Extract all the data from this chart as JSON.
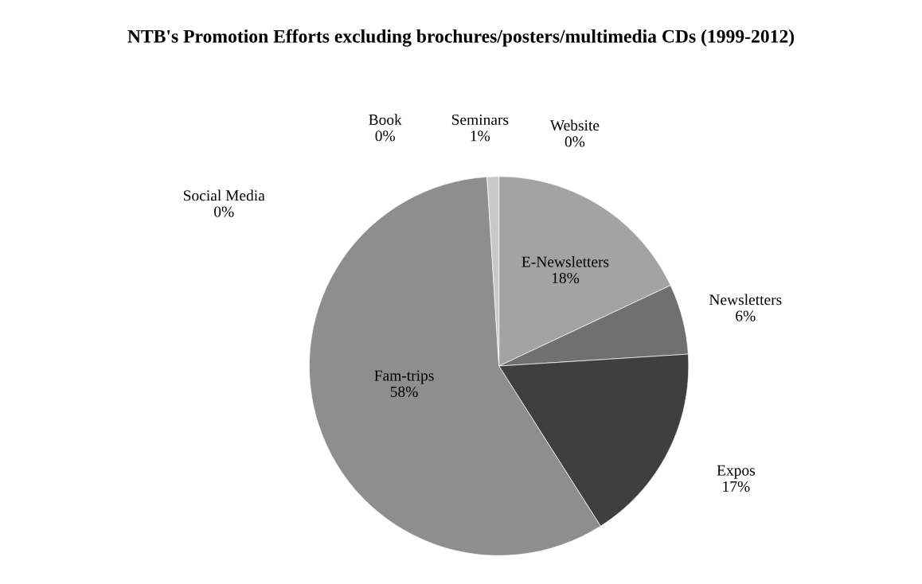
{
  "chart_data": {
    "type": "pie",
    "title": "NTB's Promotion Efforts excluding brochures/posters/multimedia CDs (1999-2012)",
    "categories": [
      "Website",
      "E-Newsletters",
      "Newsletters",
      "Expos",
      "Fam-trips",
      "Social Media",
      "Book",
      "Seminars"
    ],
    "values": [
      0,
      18,
      6,
      17,
      58,
      0,
      0,
      1
    ],
    "colors": [
      "#d4d4d4",
      "#a3a3a3",
      "#707070",
      "#3f3f3f",
      "#8e8e8e",
      "#9a9a9a",
      "#555555",
      "#c8c8c8"
    ],
    "value_labels": [
      "0%",
      "18%",
      "6%",
      "17%",
      "58%",
      "0%",
      "0%",
      "1%"
    ]
  }
}
